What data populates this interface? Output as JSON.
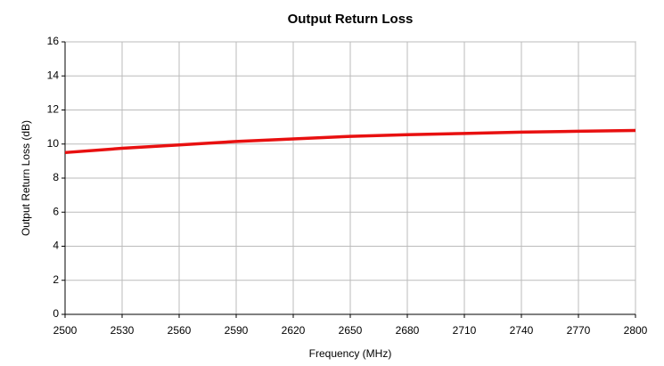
{
  "chart_data": {
    "type": "line",
    "title": "Output Return Loss",
    "xlabel": "Frequency (MHz)",
    "ylabel": "Output Return Loss (dB)",
    "x": [
      2500,
      2530,
      2560,
      2590,
      2620,
      2650,
      2680,
      2710,
      2740,
      2770,
      2800
    ],
    "series": [
      {
        "name": "Output Return Loss",
        "color": "#e81010",
        "values": [
          9.5,
          9.75,
          9.95,
          10.15,
          10.3,
          10.45,
          10.55,
          10.62,
          10.7,
          10.75,
          10.8
        ]
      }
    ],
    "xlim": [
      2500,
      2800
    ],
    "xticks": [
      2500,
      2530,
      2560,
      2590,
      2620,
      2650,
      2680,
      2710,
      2740,
      2770,
      2800
    ],
    "ylim": [
      0,
      16
    ],
    "yticks": [
      0,
      2,
      4,
      6,
      8,
      10,
      12,
      14,
      16
    ],
    "grid": true
  }
}
